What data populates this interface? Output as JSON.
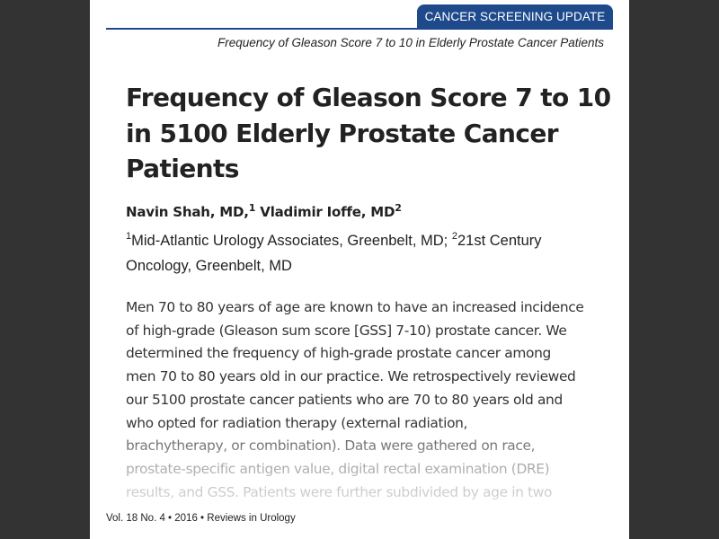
{
  "header": {
    "section_tab": "CANCER SCREENING UPDATE",
    "running_head": "Frequency of Gleason Score 7 to 10 in Elderly Prostate Cancer Patients"
  },
  "article": {
    "title": "Frequency of Gleason Score 7 to 10 in 5100 Elderly Prostate Cancer Patients",
    "authors": [
      {
        "name": "Navin Shah, MD,",
        "sup": "1"
      },
      {
        "name": "Vladimir Ioffe, MD",
        "sup": "2"
      }
    ],
    "affiliations": [
      {
        "sup": "1",
        "text": "Mid-Atlantic Urology Associates, Greenbelt, MD; "
      },
      {
        "sup": "2",
        "text": "21st Century Oncology, Greenbelt, MD"
      }
    ],
    "abstract_lines": [
      "Men 70 to 80 years of age are known to have an increased incidence",
      "of high-grade (Gleason sum score [GSS] 7-10) prostate cancer. We",
      "determined the frequency of high-grade prostate cancer among",
      "men 70 to 80 years old in our practice. We retrospectively reviewed",
      "our 5100 prostate cancer patients who are 70 to 80 years old and",
      "who opted for radiation therapy (external radiation,",
      "brachytherapy, or combination). Data were gathered on race,",
      "prostate-specific antigen value, digital rectal examination (DRE)",
      "results, and GSS. Patients were further subdivided by age in two"
    ]
  },
  "footer": {
    "citation": "Vol. 18 No. 4 • 2016 • Reviews in Urology"
  },
  "colors": {
    "brand_blue": "#1e4a8c",
    "background": "#333333",
    "page": "#ffffff"
  }
}
